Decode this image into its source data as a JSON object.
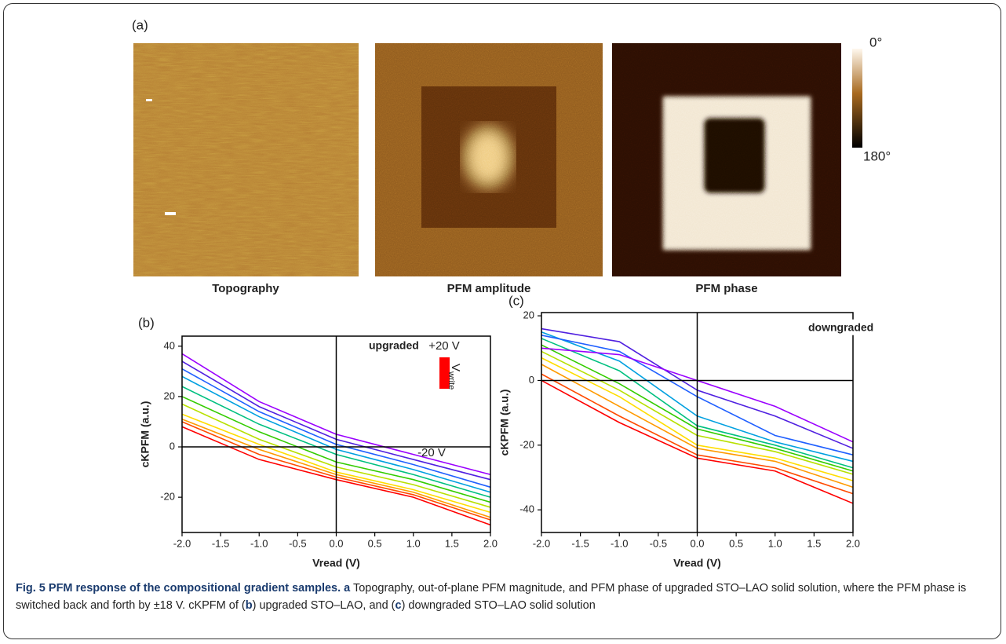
{
  "panel_a": {
    "label": "(a)",
    "images": [
      "Topography",
      "PFM amplitude",
      "PFM phase"
    ],
    "colorbar": {
      "top_label": "0°",
      "bottom_label": "180°"
    }
  },
  "chart_data": [
    {
      "type": "line",
      "panel_label": "(b)",
      "annotation": "upgraded",
      "xlabel": "Vread (V)",
      "ylabel": "cKPFM (a.u.)",
      "x": [
        -2,
        -1,
        0,
        1,
        2
      ],
      "xlim": [
        -2,
        2
      ],
      "ylim": [
        -34,
        44
      ],
      "xticks": [
        {
          "value": -2,
          "label": "-2.0"
        },
        -1.5,
        {
          "value": -1,
          "label": "-1.0"
        },
        -0.5,
        {
          "value": 0,
          "label": "0.0"
        },
        0.5,
        {
          "value": 1,
          "label": "1.0"
        },
        1.5,
        {
          "value": 2,
          "label": "2.0"
        }
      ],
      "yticks": [
        -20,
        0,
        20,
        40
      ],
      "colorbar": {
        "top_label": "+20 V",
        "bottom_label": "-20 V",
        "title": "V",
        "title_sub": "write"
      },
      "series": [
        {
          "color": "#ff0000",
          "values": [
            8,
            -5,
            -13,
            -20,
            -31
          ]
        },
        {
          "color": "#ff4a00",
          "values": [
            10,
            -3,
            -12,
            -19,
            -29
          ]
        },
        {
          "color": "#ff9a00",
          "values": [
            11,
            -1,
            -11,
            -18,
            -28
          ]
        },
        {
          "color": "#ffdd00",
          "values": [
            13,
            1,
            -10,
            -17,
            -26
          ]
        },
        {
          "color": "#b8e000",
          "values": [
            17,
            3,
            -8,
            -15,
            -24
          ]
        },
        {
          "color": "#33cc00",
          "values": [
            20,
            6,
            -6,
            -13,
            -22
          ]
        },
        {
          "color": "#00c080",
          "values": [
            24,
            9,
            -3,
            -11,
            -20
          ]
        },
        {
          "color": "#00a0e0",
          "values": [
            28,
            12,
            -1,
            -9,
            -18
          ]
        },
        {
          "color": "#2060ff",
          "values": [
            31,
            14,
            1,
            -7,
            -16
          ]
        },
        {
          "color": "#5020e0",
          "values": [
            34,
            16,
            3,
            -5,
            -13
          ]
        },
        {
          "color": "#9a00ff",
          "values": [
            37,
            18,
            5,
            -3,
            -11
          ]
        }
      ]
    },
    {
      "type": "line",
      "panel_label": "(c)",
      "annotation": "downgraded",
      "xlabel": "Vread (V)",
      "ylabel": "cKPFM (a.u.)",
      "x": [
        -2,
        -1,
        0,
        1,
        2
      ],
      "xlim": [
        -2,
        2
      ],
      "ylim": [
        -47,
        21
      ],
      "xticks": [
        {
          "value": -2,
          "label": "-2.0"
        },
        -1.5,
        {
          "value": -1,
          "label": "-1.0"
        },
        -0.5,
        {
          "value": 0,
          "label": "0.0"
        },
        0.5,
        {
          "value": 1,
          "label": "1.0"
        },
        1.5,
        {
          "value": 2,
          "label": "2.0"
        }
      ],
      "yticks": [
        -40,
        -20,
        0,
        20
      ],
      "series": [
        {
          "color": "#ff0000",
          "values": [
            0,
            -13,
            -24,
            -28,
            -38
          ]
        },
        {
          "color": "#ff4a00",
          "values": [
            2,
            -11,
            -23,
            -27,
            -35
          ]
        },
        {
          "color": "#ff9a00",
          "values": [
            5,
            -8,
            -21,
            -25,
            -33
          ]
        },
        {
          "color": "#ffdd00",
          "values": [
            7,
            -5,
            -20,
            -24,
            -31
          ]
        },
        {
          "color": "#b8e000",
          "values": [
            9,
            -3,
            -17,
            -22,
            -29
          ]
        },
        {
          "color": "#33cc00",
          "values": [
            11,
            -1,
            -15,
            -21,
            -28
          ]
        },
        {
          "color": "#00c080",
          "values": [
            13,
            3,
            -14,
            -20,
            -27
          ]
        },
        {
          "color": "#00a0e0",
          "values": [
            15,
            6,
            -11,
            -19,
            -25
          ]
        },
        {
          "color": "#2060ff",
          "values": [
            14,
            9,
            -5,
            -17,
            -23
          ]
        },
        {
          "color": "#5020e0",
          "values": [
            16,
            12,
            -3,
            -11,
            -21
          ]
        },
        {
          "color": "#9a00ff",
          "values": [
            10,
            8,
            0,
            -8,
            -19
          ]
        }
      ]
    }
  ],
  "caption": [
    {
      "text": "Fig. 5 PFM response of the compositional gradient samples.",
      "bold": true
    },
    {
      "text": "a",
      "bold": true
    },
    {
      "text": " Topography, out-of-plane PFM magnitude, and PFM phase of upgraded STO–LAO solid solution, where the PFM phase is switched back and forth by ±18 V. cKPFM of (",
      "bold": false
    },
    {
      "text": "b",
      "bold": true
    },
    {
      "text": ") upgraded STO–LAO, and (",
      "bold": false
    },
    {
      "text": "c",
      "bold": true
    },
    {
      "text": ") downgraded STO–LAO solid solution",
      "bold": false
    }
  ]
}
